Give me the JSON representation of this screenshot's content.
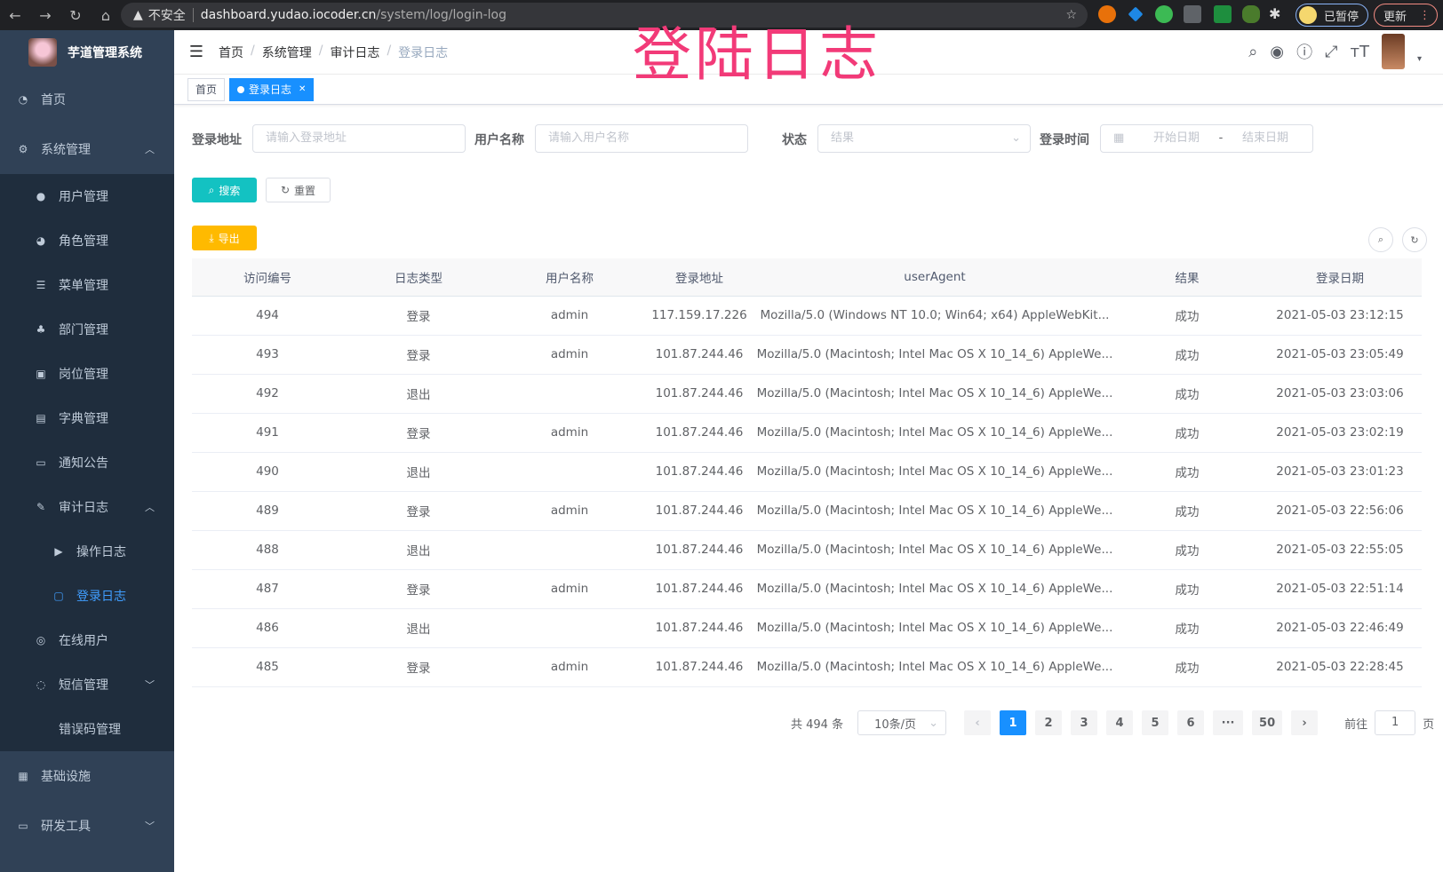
{
  "browser": {
    "insecure": "不安全",
    "host": "dashboard.yudao.iocoder.cn",
    "path": "/system/log/login-log",
    "paused": "已暂停",
    "update": "更新"
  },
  "overlay_title": "登陆日志",
  "sidebar": {
    "title": "芋道管理系统",
    "items": [
      {
        "label": "首页",
        "icon": "dashboard-icon"
      },
      {
        "label": "系统管理",
        "icon": "gear-icon",
        "children": [
          {
            "label": "用户管理",
            "icon": "user-icon"
          },
          {
            "label": "角色管理",
            "icon": "peoples-icon"
          },
          {
            "label": "菜单管理",
            "icon": "tree-table-icon"
          },
          {
            "label": "部门管理",
            "icon": "tree-icon"
          },
          {
            "label": "岗位管理",
            "icon": "post-icon"
          },
          {
            "label": "字典管理",
            "icon": "dict-icon"
          },
          {
            "label": "通知公告",
            "icon": "message-icon"
          },
          {
            "label": "审计日志",
            "icon": "form-icon",
            "children": [
              {
                "label": "操作日志",
                "icon": "log-icon"
              },
              {
                "label": "登录日志",
                "icon": "logininfor-icon",
                "active": true
              }
            ]
          },
          {
            "label": "在线用户",
            "icon": "online-icon"
          },
          {
            "label": "短信管理",
            "icon": "validCode-icon"
          },
          {
            "label": "错误码管理",
            "icon": "code-icon"
          }
        ]
      },
      {
        "label": "基础设施",
        "icon": "monitor-icon"
      },
      {
        "label": "研发工具",
        "icon": "tool-icon"
      }
    ]
  },
  "breadcrumb": [
    "首页",
    "系统管理",
    "审计日志",
    "登录日志"
  ],
  "tags": {
    "home": "首页",
    "current": "登录日志"
  },
  "filters": {
    "ip_label": "登录地址",
    "ip_placeholder": "请输入登录地址",
    "user_label": "用户名称",
    "user_placeholder": "请输入用户名称",
    "status_label": "状态",
    "status_placeholder": "结果",
    "time_label": "登录时间",
    "start_placeholder": "开始日期",
    "end_placeholder": "结束日期",
    "sep": "-"
  },
  "buttons": {
    "search": "搜索",
    "reset": "重置",
    "export": "导出"
  },
  "table": {
    "columns": [
      "访问编号",
      "日志类型",
      "用户名称",
      "登录地址",
      "userAgent",
      "结果",
      "登录日期"
    ],
    "rows": [
      [
        "494",
        "登录",
        "admin",
        "117.159.17.226",
        "Mozilla/5.0 (Windows NT 10.0; Win64; x64) AppleWebKit...",
        "成功",
        "2021-05-03 23:12:15"
      ],
      [
        "493",
        "登录",
        "admin",
        "101.87.244.46",
        "Mozilla/5.0 (Macintosh; Intel Mac OS X 10_14_6) AppleWe...",
        "成功",
        "2021-05-03 23:05:49"
      ],
      [
        "492",
        "退出",
        "",
        "101.87.244.46",
        "Mozilla/5.0 (Macintosh; Intel Mac OS X 10_14_6) AppleWe...",
        "成功",
        "2021-05-03 23:03:06"
      ],
      [
        "491",
        "登录",
        "admin",
        "101.87.244.46",
        "Mozilla/5.0 (Macintosh; Intel Mac OS X 10_14_6) AppleWe...",
        "成功",
        "2021-05-03 23:02:19"
      ],
      [
        "490",
        "退出",
        "",
        "101.87.244.46",
        "Mozilla/5.0 (Macintosh; Intel Mac OS X 10_14_6) AppleWe...",
        "成功",
        "2021-05-03 23:01:23"
      ],
      [
        "489",
        "登录",
        "admin",
        "101.87.244.46",
        "Mozilla/5.0 (Macintosh; Intel Mac OS X 10_14_6) AppleWe...",
        "成功",
        "2021-05-03 22:56:06"
      ],
      [
        "488",
        "退出",
        "",
        "101.87.244.46",
        "Mozilla/5.0 (Macintosh; Intel Mac OS X 10_14_6) AppleWe...",
        "成功",
        "2021-05-03 22:55:05"
      ],
      [
        "487",
        "登录",
        "admin",
        "101.87.244.46",
        "Mozilla/5.0 (Macintosh; Intel Mac OS X 10_14_6) AppleWe...",
        "成功",
        "2021-05-03 22:51:14"
      ],
      [
        "486",
        "退出",
        "",
        "101.87.244.46",
        "Mozilla/5.0 (Macintosh; Intel Mac OS X 10_14_6) AppleWe...",
        "成功",
        "2021-05-03 22:46:49"
      ],
      [
        "485",
        "登录",
        "admin",
        "101.87.244.46",
        "Mozilla/5.0 (Macintosh; Intel Mac OS X 10_14_6) AppleWe...",
        "成功",
        "2021-05-03 22:28:45"
      ]
    ]
  },
  "pagination": {
    "total": "共 494 条",
    "page_size": "10条/页",
    "pages": [
      "1",
      "2",
      "3",
      "4",
      "5",
      "6",
      "···",
      "50"
    ],
    "current": "1",
    "goto_label": "前往",
    "goto_value": "1",
    "goto_suffix": "页"
  },
  "colors": {
    "sidebar": "#304156",
    "submenu": "#1f2d3d",
    "primary": "#1890ff",
    "search": "#13c2c2",
    "export": "#ffba00",
    "overlay": "#f23a78"
  }
}
